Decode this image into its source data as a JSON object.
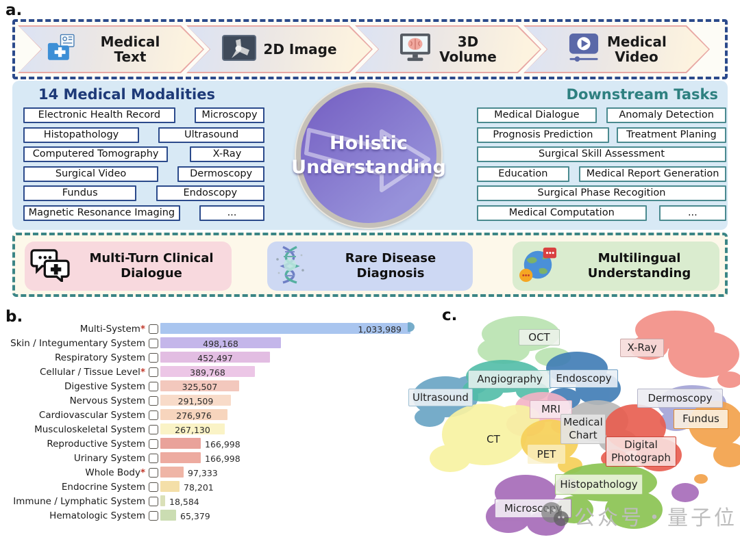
{
  "panel_labels": {
    "a": "a.",
    "b": "b.",
    "c": "c."
  },
  "colors": {
    "modality_border": "#2b4a8b",
    "task_border": "#4a8a8f",
    "modality_title": "#1e3a78",
    "task_title": "#2e8080",
    "mid_panel_bg": "#d8e9f5",
    "top_dash": "#2b4a8b",
    "bottom_dash": "#3b8585",
    "circle_purple": "#7a67c6",
    "star_red": "#c0392b",
    "watermark_gray": "#bdbdbd"
  },
  "panel_a": {
    "pipeline": [
      {
        "label": "Medical Text",
        "icon": "medical-folder-icon"
      },
      {
        "label": "2D Image",
        "icon": "xray-knee-icon"
      },
      {
        "label": "3D Volume",
        "icon": "monitor-brain-icon"
      },
      {
        "label": "Medical Video",
        "icon": "video-player-icon"
      }
    ],
    "modalities": {
      "title": "14 Medical Modalities",
      "rows": [
        [
          "Electronic Health Record",
          "Microscopy"
        ],
        [
          "Histopathology",
          "Ultrasound"
        ],
        [
          "Computered Tomography",
          "X-Ray"
        ],
        [
          "Surgical Video",
          "Dermoscopy"
        ],
        [
          "Fundus",
          "Endoscopy"
        ],
        [
          "Magnetic Resonance Imaging",
          "..."
        ]
      ]
    },
    "center": {
      "line1": "Holistic",
      "line2": "Understanding"
    },
    "tasks": {
      "title": "Downstream Tasks",
      "rows": [
        [
          "Medical Dialogue",
          "Anomaly Detection"
        ],
        [
          "Prognosis Prediction",
          "Treatment Planing"
        ],
        [
          "Surgical Skill Assessment"
        ],
        [
          "Education",
          "Medical Report Generation"
        ],
        [
          "Surgical Phase Recogition"
        ],
        [
          "Medical Computation",
          "..."
        ]
      ]
    },
    "capabilities": [
      {
        "label": "Multi-Turn Clinical Dialogue",
        "icon": "chat-medical-icon",
        "bg": "#f8d9de"
      },
      {
        "label": "Rare Disease Diagnosis",
        "icon": "dna-icon",
        "bg": "#cdd8f3"
      },
      {
        "label": "Multilingual Understanding",
        "icon": "globe-chat-icon",
        "bg": "#daeccf"
      }
    ]
  },
  "chart_data": [
    {
      "type": "bar",
      "orientation": "horizontal",
      "title": "",
      "xlabel": "",
      "ylabel": "",
      "xlim": [
        0,
        1100000
      ],
      "grid": false,
      "categories": [
        "Multi-System",
        "Skin / Integumentary System",
        "Respiratory System",
        "Cellular / Tissue Level",
        "Digestive System",
        "Nervous System",
        "Cardiovascular System",
        "Musculoskeletal System",
        "Reproductive System",
        "Urinary System",
        "Whole Body",
        "Endocrine System",
        "Immune / Lymphatic System",
        "Hematologic System"
      ],
      "stars": [
        "*",
        "",
        "",
        "*",
        "",
        "",
        "",
        "",
        "",
        "",
        "*",
        "",
        "",
        ""
      ],
      "values": [
        1033989,
        498168,
        452497,
        389768,
        325507,
        291509,
        276976,
        267130,
        166998,
        166998,
        97333,
        78201,
        18584,
        65379
      ],
      "value_labels": [
        "1,033,989",
        "498,168",
        "452,497",
        "389,768",
        "325,507",
        "291,509",
        "276,976",
        "267,130",
        "166,998",
        "166,998",
        "97,333",
        "78,201",
        "18,584",
        "65,379"
      ],
      "colors": [
        "#a9c5ef",
        "#c4b6ea",
        "#e2bde2",
        "#ecc6e6",
        "#f3c8bd",
        "#f8dbc9",
        "#f7d5bd",
        "#faf3c6",
        "#e9a29a",
        "#edaba0",
        "#efb5a6",
        "#f4dfa8",
        "#dae0b8",
        "#cbddb2"
      ],
      "value_placement": [
        "right",
        "center",
        "center",
        "center",
        "center",
        "center",
        "center",
        "center",
        "out",
        "out",
        "out",
        "out",
        "out",
        "out"
      ],
      "icons": [
        "body-organs-icon",
        "skin-layers-icon",
        "lungs-icon",
        "cell-icon",
        "stomach-icon",
        "brain-icon",
        "heart-icon",
        "bone-muscle-icon",
        "uterus-icon",
        "kidney-icon",
        "person-icon",
        "pancreas-icon",
        "lymph-icon",
        "blood-drop-icon"
      ]
    },
    {
      "type": "scatter",
      "subtype": "t-SNE cluster map of modalities",
      "legend_position": "none",
      "clusters": [
        {
          "name": "OCT",
          "color": "#b9e3b0",
          "label_bg": "rgba(238,242,236,0.88)",
          "label_border": "#b5c9b5"
        },
        {
          "name": "X-Ray",
          "color": "#f28d85",
          "label_bg": "rgba(246,220,218,0.9)",
          "label_border": "#c9a8a8"
        },
        {
          "name": "Angiography",
          "color": "#52bda8",
          "label_bg": "rgba(227,239,237,0.9)",
          "label_border": "#7fbfb5"
        },
        {
          "name": "Endoscopy",
          "color": "#3f7cb5",
          "label_bg": "rgba(232,238,245,0.9)",
          "label_border": "#6f9fc5"
        },
        {
          "name": "Ultrasound",
          "color": "#68a4c4",
          "label_bg": "rgba(234,240,244,0.9)",
          "label_border": "#9fc0d4"
        },
        {
          "name": "MRI",
          "color": "#f4b3c6",
          "label_bg": "rgba(248,232,238,0.9)",
          "label_border": "#d8aabc"
        },
        {
          "name": "Dermoscopy",
          "color": "#a3a3d6",
          "label_bg": "rgba(236,236,242,0.9)",
          "label_border": "#b5b5c9"
        },
        {
          "name": "Fundus",
          "color": "#f2a24c",
          "label_bg": "rgba(251,240,223,0.9)",
          "label_border": "#e08a2f"
        },
        {
          "name": "Medical Chart",
          "color": "#b8b8b8",
          "label_bg": "rgba(228,228,228,0.92)",
          "label_border": "#c0c0c0"
        },
        {
          "name": "CT",
          "color": "#f8f2a2",
          "label_bg": "transparent",
          "label_border": "transparent"
        },
        {
          "name": "PET",
          "color": "#f6d058",
          "label_bg": "rgba(249,240,200,0.75)",
          "label_border": "transparent"
        },
        {
          "name": "Digital Photograph",
          "color": "#e85c4e",
          "label_bg": "rgba(248,224,222,0.9)",
          "label_border": "#cc4438"
        },
        {
          "name": "Histopathology",
          "color": "#8cc453",
          "label_bg": "rgba(234,244,221,0.9)",
          "label_border": "#a8cc80"
        },
        {
          "name": "Microscopy",
          "color": "#a569b8",
          "label_bg": "rgba(242,236,244,0.9)",
          "label_border": "#b07fc0"
        }
      ]
    }
  ],
  "watermark": {
    "text": "公众号・量子位",
    "logo": "wechat-chat-bubbles-logo"
  }
}
